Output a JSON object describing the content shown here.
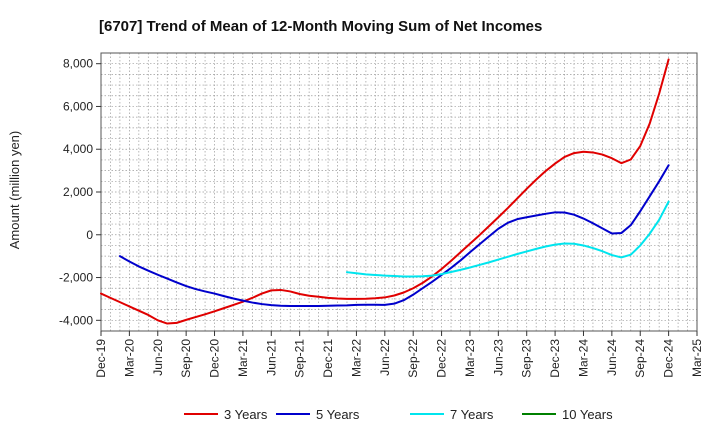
{
  "chart_data": {
    "type": "line",
    "title": "[6707]  Trend of Mean of 12-Month Moving Sum of Net Incomes",
    "ylabel": "Amount (million yen)",
    "xlabel": "",
    "ylim": [
      -4500,
      8500
    ],
    "yticks": [
      -4000,
      -2000,
      0,
      2000,
      4000,
      6000,
      8000
    ],
    "ytick_labels": [
      "-4,000",
      "-2,000",
      "0",
      "2,000",
      "4,000",
      "6,000",
      "8,000"
    ],
    "x_categories": [
      "Dec-19",
      "Mar-20",
      "Jun-20",
      "Sep-20",
      "Dec-20",
      "Mar-21",
      "Jun-21",
      "Sep-21",
      "Dec-21",
      "Mar-22",
      "Jun-22",
      "Sep-22",
      "Dec-22",
      "Mar-23",
      "Jun-23",
      "Sep-23",
      "Dec-23",
      "Mar-24",
      "Jun-24",
      "Sep-24",
      "Dec-24",
      "Mar-25"
    ],
    "grid": true,
    "legend_position": "bottom",
    "series": [
      {
        "name": "3 Years",
        "color": "#e00000",
        "points": [
          [
            "Dec-19",
            -2750
          ],
          [
            "Jan-20",
            -2950
          ],
          [
            "Feb-20",
            -3150
          ],
          [
            "Mar-20",
            -3350
          ],
          [
            "Apr-20",
            -3550
          ],
          [
            "May-20",
            -3750
          ],
          [
            "Jun-20",
            -4000
          ],
          [
            "Jul-20",
            -4150
          ],
          [
            "Aug-20",
            -4120
          ],
          [
            "Sep-20",
            -3980
          ],
          [
            "Oct-20",
            -3850
          ],
          [
            "Nov-20",
            -3720
          ],
          [
            "Dec-20",
            -3580
          ],
          [
            "Jan-21",
            -3430
          ],
          [
            "Feb-21",
            -3280
          ],
          [
            "Mar-21",
            -3130
          ],
          [
            "Apr-21",
            -2950
          ],
          [
            "May-21",
            -2750
          ],
          [
            "Jun-21",
            -2600
          ],
          [
            "Jul-21",
            -2580
          ],
          [
            "Aug-21",
            -2650
          ],
          [
            "Sep-21",
            -2770
          ],
          [
            "Oct-21",
            -2850
          ],
          [
            "Nov-21",
            -2900
          ],
          [
            "Dec-21",
            -2950
          ],
          [
            "Jan-22",
            -2980
          ],
          [
            "Feb-22",
            -3000
          ],
          [
            "Mar-22",
            -3000
          ],
          [
            "Apr-22",
            -2990
          ],
          [
            "May-22",
            -2970
          ],
          [
            "Jun-22",
            -2930
          ],
          [
            "Jul-22",
            -2840
          ],
          [
            "Aug-22",
            -2700
          ],
          [
            "Sep-22",
            -2500
          ],
          [
            "Oct-22",
            -2250
          ],
          [
            "Nov-22",
            -1950
          ],
          [
            "Dec-22",
            -1600
          ],
          [
            "Jan-23",
            -1220
          ],
          [
            "Feb-23",
            -820
          ],
          [
            "Mar-23",
            -420
          ],
          [
            "Apr-23",
            -20
          ],
          [
            "May-23",
            400
          ],
          [
            "Jun-23",
            820
          ],
          [
            "Jul-23",
            1250
          ],
          [
            "Aug-23",
            1700
          ],
          [
            "Sep-23",
            2150
          ],
          [
            "Oct-23",
            2580
          ],
          [
            "Nov-23",
            2980
          ],
          [
            "Dec-23",
            3330
          ],
          [
            "Jan-24",
            3640
          ],
          [
            "Feb-24",
            3820
          ],
          [
            "Mar-24",
            3880
          ],
          [
            "Apr-24",
            3850
          ],
          [
            "May-24",
            3750
          ],
          [
            "Jun-24",
            3580
          ],
          [
            "Jul-24",
            3350
          ],
          [
            "Aug-24",
            3520
          ],
          [
            "Sep-24",
            4150
          ],
          [
            "Oct-24",
            5200
          ],
          [
            "Nov-24",
            6600
          ],
          [
            "Dec-24",
            8200
          ]
        ]
      },
      {
        "name": "5 Years",
        "color": "#0000cc",
        "points": [
          [
            "Feb-20",
            -1000
          ],
          [
            "Mar-20",
            -1250
          ],
          [
            "Apr-20",
            -1480
          ],
          [
            "May-20",
            -1680
          ],
          [
            "Jun-20",
            -1870
          ],
          [
            "Jul-20",
            -2050
          ],
          [
            "Aug-20",
            -2230
          ],
          [
            "Sep-20",
            -2400
          ],
          [
            "Oct-20",
            -2540
          ],
          [
            "Nov-20",
            -2650
          ],
          [
            "Dec-20",
            -2750
          ],
          [
            "Jan-21",
            -2870
          ],
          [
            "Feb-21",
            -2980
          ],
          [
            "Mar-21",
            -3080
          ],
          [
            "Apr-21",
            -3170
          ],
          [
            "May-21",
            -3240
          ],
          [
            "Jun-21",
            -3290
          ],
          [
            "Jul-21",
            -3320
          ],
          [
            "Aug-21",
            -3330
          ],
          [
            "Sep-21",
            -3330
          ],
          [
            "Oct-21",
            -3330
          ],
          [
            "Nov-21",
            -3330
          ],
          [
            "Dec-21",
            -3320
          ],
          [
            "Jan-22",
            -3310
          ],
          [
            "Feb-22",
            -3300
          ],
          [
            "Mar-22",
            -3280
          ],
          [
            "Apr-22",
            -3270
          ],
          [
            "May-22",
            -3270
          ],
          [
            "Jun-22",
            -3280
          ],
          [
            "Jul-22",
            -3220
          ],
          [
            "Aug-22",
            -3060
          ],
          [
            "Sep-22",
            -2800
          ],
          [
            "Oct-22",
            -2500
          ],
          [
            "Nov-22",
            -2200
          ],
          [
            "Dec-22",
            -1880
          ],
          [
            "Jan-23",
            -1550
          ],
          [
            "Feb-23",
            -1200
          ],
          [
            "Mar-23",
            -820
          ],
          [
            "Apr-23",
            -450
          ],
          [
            "May-23",
            -80
          ],
          [
            "Jun-23",
            280
          ],
          [
            "Jul-23",
            560
          ],
          [
            "Aug-23",
            730
          ],
          [
            "Sep-23",
            820
          ],
          [
            "Oct-23",
            900
          ],
          [
            "Nov-23",
            980
          ],
          [
            "Dec-23",
            1050
          ],
          [
            "Jan-24",
            1040
          ],
          [
            "Feb-24",
            940
          ],
          [
            "Mar-24",
            760
          ],
          [
            "Apr-24",
            540
          ],
          [
            "May-24",
            300
          ],
          [
            "Jun-24",
            60
          ],
          [
            "Jul-24",
            80
          ],
          [
            "Aug-24",
            450
          ],
          [
            "Sep-24",
            1100
          ],
          [
            "Oct-24",
            1800
          ],
          [
            "Nov-24",
            2500
          ],
          [
            "Dec-24",
            3250
          ]
        ]
      },
      {
        "name": "7 Years",
        "color": "#00e5ee",
        "points": [
          [
            "Feb-22",
            -1750
          ],
          [
            "Mar-22",
            -1800
          ],
          [
            "Apr-22",
            -1850
          ],
          [
            "May-22",
            -1880
          ],
          [
            "Jun-22",
            -1910
          ],
          [
            "Jul-22",
            -1930
          ],
          [
            "Aug-22",
            -1950
          ],
          [
            "Sep-22",
            -1950
          ],
          [
            "Oct-22",
            -1940
          ],
          [
            "Nov-22",
            -1910
          ],
          [
            "Dec-22",
            -1840
          ],
          [
            "Jan-23",
            -1740
          ],
          [
            "Feb-23",
            -1640
          ],
          [
            "Mar-23",
            -1530
          ],
          [
            "Apr-23",
            -1410
          ],
          [
            "May-23",
            -1290
          ],
          [
            "Jun-23",
            -1160
          ],
          [
            "Jul-23",
            -1030
          ],
          [
            "Aug-23",
            -900
          ],
          [
            "Sep-23",
            -780
          ],
          [
            "Oct-23",
            -660
          ],
          [
            "Nov-23",
            -550
          ],
          [
            "Dec-23",
            -460
          ],
          [
            "Jan-24",
            -410
          ],
          [
            "Feb-24",
            -420
          ],
          [
            "Mar-24",
            -500
          ],
          [
            "Apr-24",
            -620
          ],
          [
            "May-24",
            -770
          ],
          [
            "Jun-24",
            -950
          ],
          [
            "Jul-24",
            -1060
          ],
          [
            "Aug-24",
            -930
          ],
          [
            "Sep-24",
            -500
          ],
          [
            "Oct-24",
            50
          ],
          [
            "Nov-24",
            700
          ],
          [
            "Dec-24",
            1550
          ]
        ]
      },
      {
        "name": "10 Years",
        "color": "#008000",
        "points": []
      }
    ]
  }
}
